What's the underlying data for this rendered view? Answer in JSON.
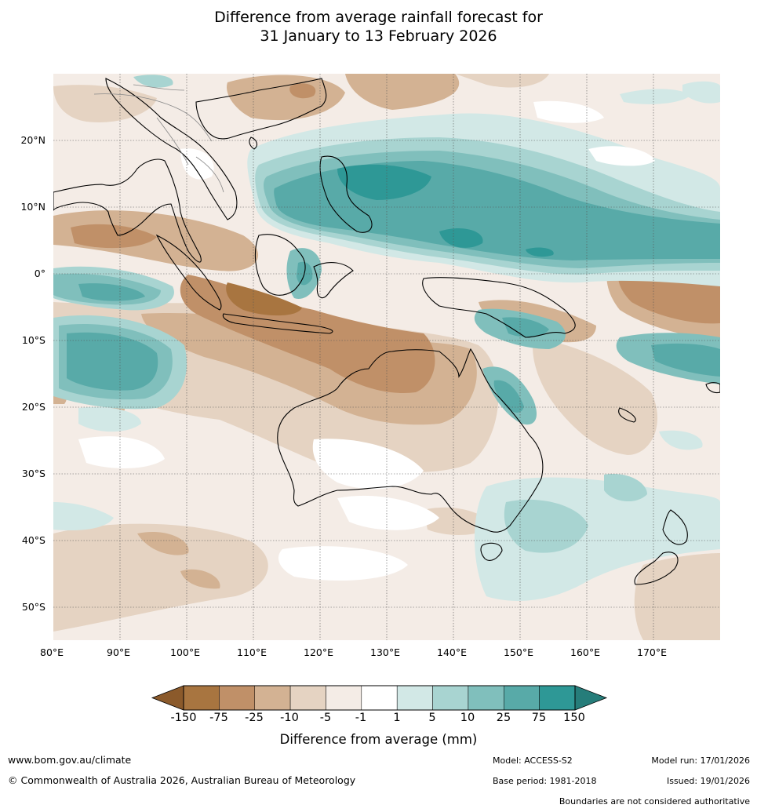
{
  "title_line1": "Difference from average rainfall forecast for",
  "title_line2": "31 January to 13 February 2026",
  "map": {
    "lon_range": [
      80,
      180
    ],
    "lat_range": [
      -55,
      30
    ],
    "lat_ticks": [
      {
        "lat": 20,
        "label": "20°N"
      },
      {
        "lat": 10,
        "label": "10°N"
      },
      {
        "lat": 0,
        "label": "0°"
      },
      {
        "lat": -10,
        "label": "10°S"
      },
      {
        "lat": -20,
        "label": "20°S"
      },
      {
        "lat": -30,
        "label": "30°S"
      },
      {
        "lat": -40,
        "label": "40°S"
      },
      {
        "lat": -50,
        "label": "50°S"
      }
    ],
    "lon_ticks": [
      {
        "lon": 80,
        "label": "80°E"
      },
      {
        "lon": 90,
        "label": "90°E"
      },
      {
        "lon": 100,
        "label": "100°E"
      },
      {
        "lon": 110,
        "label": "110°E"
      },
      {
        "lon": 120,
        "label": "120°E"
      },
      {
        "lon": 130,
        "label": "130°E"
      },
      {
        "lon": 140,
        "label": "140°E"
      },
      {
        "lon": 150,
        "label": "150°E"
      },
      {
        "lon": 160,
        "label": "160°E"
      },
      {
        "lon": 170,
        "label": "170°E"
      }
    ]
  },
  "colorbar": {
    "labels": [
      "-150",
      "-75",
      "-25",
      "-10",
      "-5",
      "-1",
      "1",
      "5",
      "10",
      "25",
      "75",
      "150"
    ],
    "colors": [
      "#a87540",
      "#c09068",
      "#d3b293",
      "#e5d3c2",
      "#f4ece6",
      "#ffffff",
      "#d2e8e6",
      "#a8d4d1",
      "#80bfbc",
      "#58aaa8",
      "#2e9896"
    ],
    "extend_low_color": "#8b5a2b",
    "extend_high_color": "#267d7a",
    "title": "Difference from average (mm)"
  },
  "footer": {
    "url": "www.bom.gov.au/climate",
    "copyright": "© Commonwealth of Australia 2026, Australian Bureau of Meteorology",
    "model": "Model: ACCESS-S2",
    "model_run": "Model run: 17/01/2026",
    "base_period": "Base period: 1981-2018",
    "issued": "Issued: 19/01/2026",
    "disclaimer": "Boundaries are not considered authoritative"
  }
}
